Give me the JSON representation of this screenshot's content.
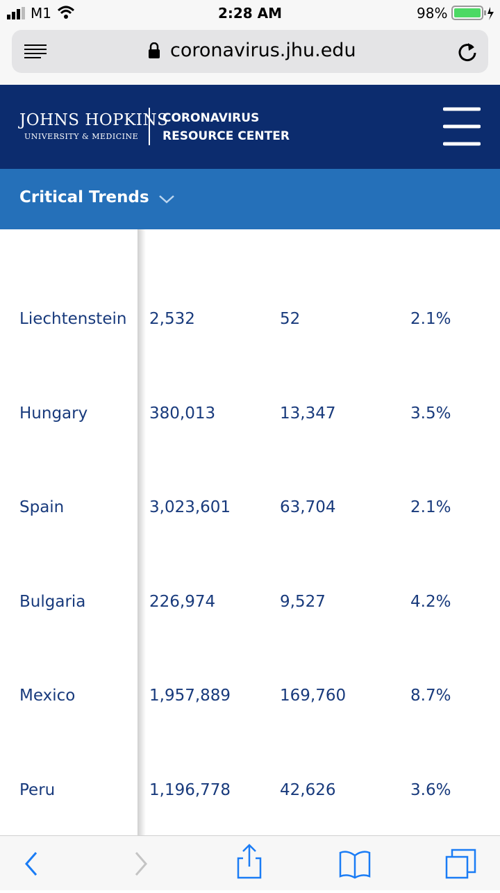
{
  "status_bar": {
    "carrier": "M1",
    "time": "2:28 AM",
    "battery": "98%"
  },
  "address_bar": {
    "url": "coronavirus.jhu.edu"
  },
  "header": {
    "logo_line1": "JOHNS HOPKINS",
    "logo_line2": "UNIVERSITY & MEDICINE",
    "site_line1": "CORONAVIRUS",
    "site_line2": "RESOURCE CENTER"
  },
  "nav": {
    "title": "Critical Trends"
  },
  "table": {
    "rows": [
      [
        "Liechtenstein",
        "2,532",
        "52",
        "2.1%"
      ],
      [
        "Hungary",
        "380,013",
        "13,347",
        "3.5%"
      ],
      [
        "Spain",
        "3,023,601",
        "63,704",
        "2.1%"
      ],
      [
        "Bulgaria",
        "226,974",
        "9,527",
        "4.2%"
      ],
      [
        "Mexico",
        "1,957,889",
        "169,760",
        "8.7%"
      ],
      [
        "Peru",
        "1,196,778",
        "42,626",
        "3.6%"
      ]
    ]
  }
}
